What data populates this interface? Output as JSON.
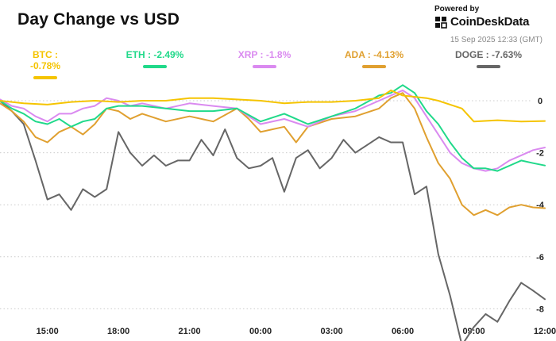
{
  "header": {
    "title": "Day Change vs USD",
    "powered_by": "Powered by",
    "brand": "CoinDeskData",
    "timestamp": "15 Sep 2025 12:33 (GMT)"
  },
  "legend": [
    {
      "label": "BTC : -0.78%",
      "color": "#f5c400"
    },
    {
      "label": "ETH : -2.49%",
      "color": "#20d98a"
    },
    {
      "label": "XRP : -1.8%",
      "color": "#da8af0"
    },
    {
      "label": "ADA : -4.13%",
      "color": "#e0a030"
    },
    {
      "label": "DOGE : -7.63%",
      "color": "#666666"
    }
  ],
  "chart_data": {
    "type": "line",
    "title": "Day Change vs USD",
    "xlabel": "",
    "ylabel": "",
    "x_range": [
      13.0,
      36.0
    ],
    "ylim": [
      -9.2,
      0.6
    ],
    "x_ticks": [
      {
        "value": 15,
        "label": "15:00"
      },
      {
        "value": 18,
        "label": "18:00"
      },
      {
        "value": 21,
        "label": "21:00"
      },
      {
        "value": 24,
        "label": "00:00"
      },
      {
        "value": 27,
        "label": "03:00"
      },
      {
        "value": 30,
        "label": "06:00"
      },
      {
        "value": 33,
        "label": "09:00"
      },
      {
        "value": 36,
        "label": "12:00"
      }
    ],
    "y_ticks": [
      0,
      -2,
      -4,
      -6,
      -8
    ],
    "grid": "horizontal dotted",
    "legend_position": "top",
    "series": [
      {
        "name": "BTC",
        "color": "#f5c400",
        "points": [
          [
            13.0,
            0.0
          ],
          [
            14.0,
            -0.1
          ],
          [
            15.0,
            -0.15
          ],
          [
            16.0,
            -0.05
          ],
          [
            17.0,
            0.0
          ],
          [
            18.0,
            -0.05
          ],
          [
            19.0,
            0.0
          ],
          [
            20.0,
            0.0
          ],
          [
            21.0,
            0.1
          ],
          [
            22.0,
            0.1
          ],
          [
            23.0,
            0.05
          ],
          [
            24.0,
            0.0
          ],
          [
            25.0,
            -0.1
          ],
          [
            26.0,
            -0.05
          ],
          [
            27.0,
            -0.05
          ],
          [
            28.0,
            0.0
          ],
          [
            29.0,
            0.1
          ],
          [
            29.5,
            0.4
          ],
          [
            30.0,
            0.2
          ],
          [
            31.0,
            0.1
          ],
          [
            31.5,
            0.0
          ],
          [
            32.5,
            -0.3
          ],
          [
            33.0,
            -0.8
          ],
          [
            34.0,
            -0.75
          ],
          [
            35.0,
            -0.8
          ],
          [
            36.0,
            -0.78
          ]
        ]
      },
      {
        "name": "ETH",
        "color": "#20d98a",
        "points": [
          [
            13.0,
            0.0
          ],
          [
            13.5,
            -0.3
          ],
          [
            14.0,
            -0.5
          ],
          [
            14.5,
            -0.8
          ],
          [
            15.0,
            -0.9
          ],
          [
            15.5,
            -0.7
          ],
          [
            16.0,
            -1.0
          ],
          [
            16.5,
            -0.8
          ],
          [
            17.0,
            -0.7
          ],
          [
            17.5,
            -0.3
          ],
          [
            18.0,
            -0.2
          ],
          [
            19.0,
            -0.2
          ],
          [
            20.0,
            -0.3
          ],
          [
            21.0,
            -0.4
          ],
          [
            22.0,
            -0.4
          ],
          [
            23.0,
            -0.3
          ],
          [
            24.0,
            -0.8
          ],
          [
            25.0,
            -0.5
          ],
          [
            26.0,
            -0.9
          ],
          [
            27.0,
            -0.6
          ],
          [
            28.0,
            -0.3
          ],
          [
            29.0,
            0.2
          ],
          [
            29.5,
            0.3
          ],
          [
            30.0,
            0.6
          ],
          [
            30.5,
            0.3
          ],
          [
            31.0,
            -0.4
          ],
          [
            31.5,
            -0.9
          ],
          [
            32.0,
            -1.6
          ],
          [
            32.5,
            -2.2
          ],
          [
            33.0,
            -2.6
          ],
          [
            33.5,
            -2.6
          ],
          [
            34.0,
            -2.7
          ],
          [
            34.5,
            -2.5
          ],
          [
            35.0,
            -2.3
          ],
          [
            35.5,
            -2.4
          ],
          [
            36.0,
            -2.49
          ]
        ]
      },
      {
        "name": "XRP",
        "color": "#da8af0",
        "points": [
          [
            13.0,
            0.05
          ],
          [
            13.5,
            -0.2
          ],
          [
            14.0,
            -0.3
          ],
          [
            14.5,
            -0.6
          ],
          [
            15.0,
            -0.8
          ],
          [
            15.5,
            -0.5
          ],
          [
            16.0,
            -0.5
          ],
          [
            16.5,
            -0.3
          ],
          [
            17.0,
            -0.2
          ],
          [
            17.5,
            0.1
          ],
          [
            18.0,
            0.0
          ],
          [
            18.5,
            -0.2
          ],
          [
            19.0,
            -0.1
          ],
          [
            20.0,
            -0.3
          ],
          [
            21.0,
            -0.1
          ],
          [
            22.0,
            -0.2
          ],
          [
            23.0,
            -0.3
          ],
          [
            24.0,
            -0.9
          ],
          [
            25.0,
            -0.7
          ],
          [
            26.0,
            -1.0
          ],
          [
            27.0,
            -0.6
          ],
          [
            28.0,
            -0.4
          ],
          [
            29.0,
            0.0
          ],
          [
            29.5,
            0.2
          ],
          [
            30.0,
            0.4
          ],
          [
            30.5,
            0.1
          ],
          [
            31.0,
            -0.6
          ],
          [
            31.5,
            -1.3
          ],
          [
            32.0,
            -2.0
          ],
          [
            32.5,
            -2.4
          ],
          [
            33.0,
            -2.6
          ],
          [
            33.5,
            -2.7
          ],
          [
            34.0,
            -2.6
          ],
          [
            34.5,
            -2.3
          ],
          [
            35.0,
            -2.1
          ],
          [
            35.5,
            -1.9
          ],
          [
            36.0,
            -1.8
          ]
        ]
      },
      {
        "name": "ADA",
        "color": "#e0a030",
        "points": [
          [
            13.0,
            -0.1
          ],
          [
            13.5,
            -0.4
          ],
          [
            14.0,
            -0.8
          ],
          [
            14.5,
            -1.4
          ],
          [
            15.0,
            -1.6
          ],
          [
            15.5,
            -1.2
          ],
          [
            16.0,
            -1.0
          ],
          [
            16.5,
            -1.3
          ],
          [
            17.0,
            -0.9
          ],
          [
            17.5,
            -0.3
          ],
          [
            18.0,
            -0.4
          ],
          [
            18.5,
            -0.7
          ],
          [
            19.0,
            -0.5
          ],
          [
            20.0,
            -0.8
          ],
          [
            21.0,
            -0.6
          ],
          [
            22.0,
            -0.8
          ],
          [
            23.0,
            -0.3
          ],
          [
            23.5,
            -0.7
          ],
          [
            24.0,
            -1.2
          ],
          [
            25.0,
            -1.0
          ],
          [
            25.5,
            -1.6
          ],
          [
            26.0,
            -1.0
          ],
          [
            27.0,
            -0.7
          ],
          [
            28.0,
            -0.6
          ],
          [
            29.0,
            -0.3
          ],
          [
            29.5,
            0.1
          ],
          [
            30.0,
            0.3
          ],
          [
            30.5,
            -0.3
          ],
          [
            31.0,
            -1.4
          ],
          [
            31.5,
            -2.4
          ],
          [
            32.0,
            -3.0
          ],
          [
            32.5,
            -4.0
          ],
          [
            33.0,
            -4.4
          ],
          [
            33.5,
            -4.2
          ],
          [
            34.0,
            -4.4
          ],
          [
            34.5,
            -4.1
          ],
          [
            35.0,
            -4.0
          ],
          [
            35.5,
            -4.1
          ],
          [
            36.0,
            -4.13
          ]
        ]
      },
      {
        "name": "DOGE",
        "color": "#666666",
        "points": [
          [
            13.0,
            0.0
          ],
          [
            13.5,
            -0.4
          ],
          [
            14.0,
            -0.9
          ],
          [
            14.5,
            -2.3
          ],
          [
            15.0,
            -3.8
          ],
          [
            15.5,
            -3.6
          ],
          [
            16.0,
            -4.2
          ],
          [
            16.5,
            -3.4
          ],
          [
            17.0,
            -3.7
          ],
          [
            17.5,
            -3.4
          ],
          [
            18.0,
            -1.2
          ],
          [
            18.5,
            -2.0
          ],
          [
            19.0,
            -2.5
          ],
          [
            19.5,
            -2.1
          ],
          [
            20.0,
            -2.5
          ],
          [
            20.5,
            -2.3
          ],
          [
            21.0,
            -2.3
          ],
          [
            21.5,
            -1.5
          ],
          [
            22.0,
            -2.1
          ],
          [
            22.5,
            -1.1
          ],
          [
            23.0,
            -2.2
          ],
          [
            23.5,
            -2.6
          ],
          [
            24.0,
            -2.5
          ],
          [
            24.5,
            -2.2
          ],
          [
            25.0,
            -3.5
          ],
          [
            25.5,
            -2.2
          ],
          [
            26.0,
            -1.9
          ],
          [
            26.5,
            -2.6
          ],
          [
            27.0,
            -2.2
          ],
          [
            27.5,
            -1.5
          ],
          [
            28.0,
            -2.0
          ],
          [
            28.5,
            -1.7
          ],
          [
            29.0,
            -1.4
          ],
          [
            29.5,
            -1.6
          ],
          [
            30.0,
            -1.6
          ],
          [
            30.5,
            -3.6
          ],
          [
            31.0,
            -3.3
          ],
          [
            31.5,
            -5.9
          ],
          [
            32.0,
            -7.5
          ],
          [
            32.5,
            -9.4
          ],
          [
            33.0,
            -8.7
          ],
          [
            33.5,
            -8.2
          ],
          [
            34.0,
            -8.5
          ],
          [
            34.5,
            -7.7
          ],
          [
            35.0,
            -7.0
          ],
          [
            35.5,
            -7.3
          ],
          [
            36.0,
            -7.63
          ]
        ]
      }
    ]
  }
}
